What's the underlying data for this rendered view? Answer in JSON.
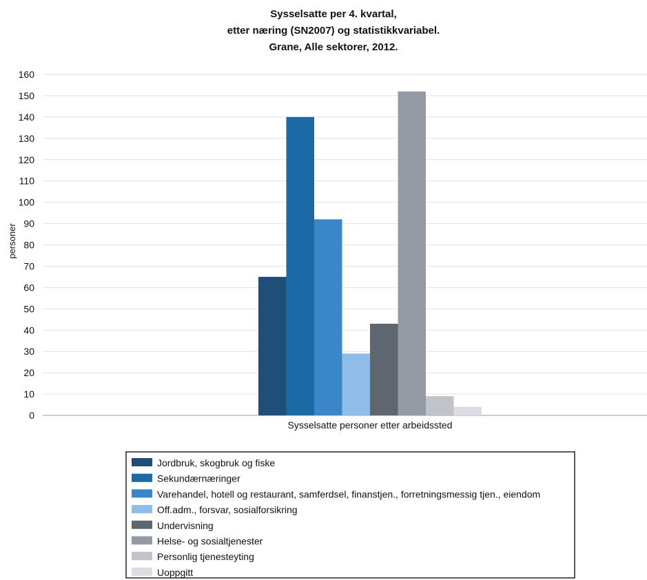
{
  "chart_data": {
    "type": "bar",
    "title_lines": [
      "Sysselsatte per 4. kvartal,",
      "etter næring (SN2007) og statistikkvariabel.",
      "Grane, Alle sektorer, 2012."
    ],
    "xlabel": "",
    "ylabel": "personer",
    "ylim": [
      0,
      160
    ],
    "yticks": [
      0,
      10,
      20,
      30,
      40,
      50,
      60,
      70,
      80,
      90,
      100,
      110,
      120,
      130,
      140,
      150,
      160
    ],
    "grid": true,
    "legend_position": "bottom",
    "categories": [
      "Sysselsatte personer etter arbeidssted"
    ],
    "series": [
      {
        "name": "Jordbruk, skogbruk og fiske",
        "color": "#1f4e78",
        "values": [
          65
        ]
      },
      {
        "name": "Sekundærnæringer",
        "color": "#1b6aa6",
        "values": [
          140
        ]
      },
      {
        "name": "Varehandel, hotell og restaurant, samferdsel, finanstjen., forretningsmessig tjen., eiendom",
        "color": "#3a86c8",
        "values": [
          92
        ]
      },
      {
        "name": "Off.adm., forsvar, sosialforsikring",
        "color": "#8fbde8",
        "values": [
          29
        ]
      },
      {
        "name": "Undervisning",
        "color": "#5e6670",
        "values": [
          43
        ]
      },
      {
        "name": "Helse- og sosialtjenester",
        "color": "#959ba5",
        "values": [
          152
        ]
      },
      {
        "name": "Personlig tjenesteyting",
        "color": "#c0c3ca",
        "values": [
          9
        ]
      },
      {
        "name": "Uoppgitt",
        "color": "#dcdde3",
        "values": [
          4
        ]
      }
    ]
  }
}
